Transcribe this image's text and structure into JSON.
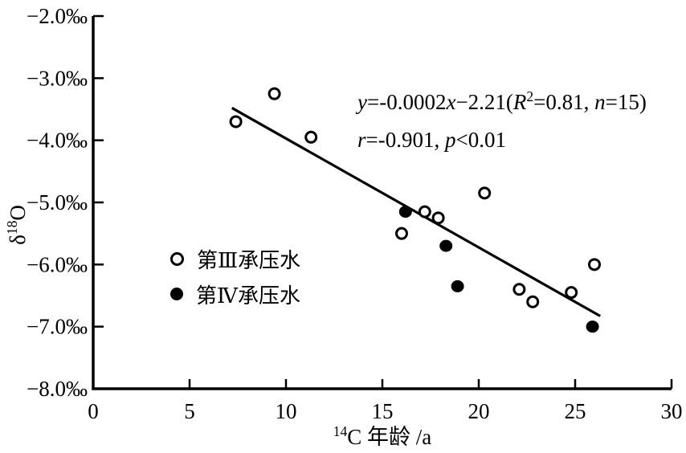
{
  "figure": {
    "background": "#ffffff",
    "ink": "#000000"
  },
  "chart_data": {
    "type": "scatter",
    "title": "",
    "xlabel_segments": [
      {
        "text": "14",
        "style": "sup"
      },
      {
        "text": "C 年龄 /a",
        "style": "normal"
      }
    ],
    "ylabel_segments": [
      {
        "text": "δ",
        "style": "normal"
      },
      {
        "text": "18",
        "style": "sup"
      },
      {
        "text": "O",
        "style": "normal"
      }
    ],
    "xlim": [
      0,
      30
    ],
    "ylim": [
      -8,
      -2
    ],
    "x_ticks": [
      {
        "value": 0,
        "label": "0"
      },
      {
        "value": 5,
        "label": "5"
      },
      {
        "value": 10,
        "label": "10"
      },
      {
        "value": 15,
        "label": "15"
      },
      {
        "value": 20,
        "label": "20"
      },
      {
        "value": 25,
        "label": "25"
      },
      {
        "value": 30,
        "label": "30"
      }
    ],
    "y_ticks": [
      {
        "value": -2,
        "label": "−2.0‰"
      },
      {
        "value": -3,
        "label": "−3.0‰"
      },
      {
        "value": -4,
        "label": "−4.0‰"
      },
      {
        "value": -5,
        "label": "−5.0‰"
      },
      {
        "value": -6,
        "label": "−6.0‰"
      },
      {
        "value": -7,
        "label": "−7.0‰"
      },
      {
        "value": -8,
        "label": "−8.0‰"
      }
    ],
    "grid": false,
    "legend_position": "inside-center-left",
    "series": [
      {
        "name": "第Ⅲ承压水",
        "marker": "open-circle",
        "points": [
          [
            7.4,
            -3.7
          ],
          [
            9.4,
            -3.25
          ],
          [
            11.3,
            -3.95
          ],
          [
            16.0,
            -5.5
          ],
          [
            17.2,
            -5.15
          ],
          [
            17.9,
            -5.25
          ],
          [
            20.3,
            -4.85
          ],
          [
            22.1,
            -6.4
          ],
          [
            22.8,
            -6.6
          ],
          [
            24.8,
            -6.45
          ],
          [
            26.0,
            -6.0
          ]
        ]
      },
      {
        "name": "第Ⅳ承压水",
        "marker": "filled-circle",
        "points": [
          [
            16.2,
            -5.15
          ],
          [
            18.3,
            -5.7
          ],
          [
            18.9,
            -6.35
          ],
          [
            25.9,
            -7.0
          ]
        ]
      }
    ],
    "fit_line": {
      "x1": 7.2,
      "y1": -3.48,
      "x2": 26.3,
      "y2": -6.83
    },
    "annotation": {
      "line1_segments": [
        {
          "text": "y",
          "style": "italic"
        },
        {
          "text": "=-0.0002",
          "style": "normal"
        },
        {
          "text": "x",
          "style": "italic"
        },
        {
          "text": "−2.21(",
          "style": "normal"
        },
        {
          "text": "R",
          "style": "italic"
        },
        {
          "text": "2",
          "style": "sup"
        },
        {
          "text": "=0.81, ",
          "style": "normal"
        },
        {
          "text": "n",
          "style": "italic"
        },
        {
          "text": "=15)",
          "style": "normal"
        }
      ],
      "line2_segments": [
        {
          "text": "r",
          "style": "italic"
        },
        {
          "text": "=-0.901, ",
          "style": "normal"
        },
        {
          "text": "p",
          "style": "italic"
        },
        {
          "text": "<0.01",
          "style": "normal"
        }
      ]
    }
  }
}
